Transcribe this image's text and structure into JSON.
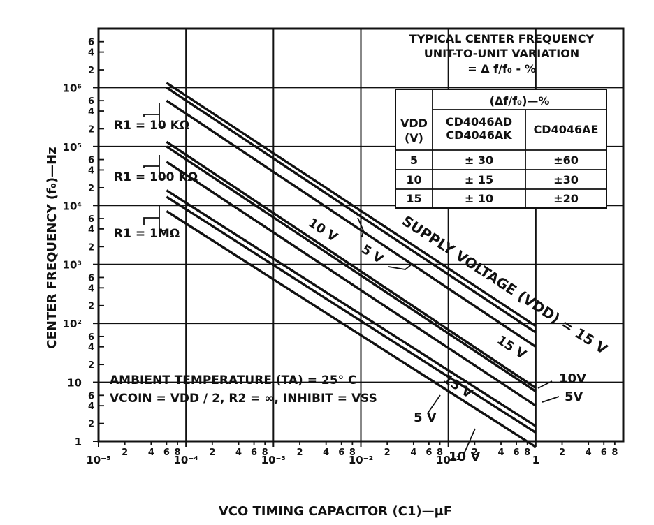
{
  "chart_data": {
    "type": "line",
    "title": "",
    "xlabel": "VCO TIMING CAPACITOR (C1)—μF",
    "ylabel": "CENTER FREQUENCY (f₀)—Hz",
    "x_scale": "log",
    "y_scale": "log",
    "xlim": [
      1e-05,
      10
    ],
    "ylim": [
      1,
      10000000
    ],
    "grid": true,
    "x_ticks": [
      "10⁻⁵",
      "10⁻⁴",
      "10⁻³",
      "10⁻²",
      "10⁻¹",
      "1"
    ],
    "y_ticks": [
      "1",
      "10",
      "10²",
      "10³",
      "10⁴",
      "10⁵",
      "10⁶"
    ],
    "series": [
      {
        "name": "R1 = 10 KΩ, VDD = 15 V",
        "x": [
          6e-05,
          1
        ],
        "y": [
          1200000,
          90
        ]
      },
      {
        "name": "R1 = 10 KΩ, VDD = 10 V",
        "x": [
          6e-05,
          1
        ],
        "y": [
          1000000,
          70
        ]
      },
      {
        "name": "R1 = 10 KΩ, VDD = 5 V",
        "x": [
          6e-05,
          1
        ],
        "y": [
          600000,
          40
        ]
      },
      {
        "name": "R1 = 100 KΩ, VDD = 15 V",
        "x": [
          6e-05,
          1
        ],
        "y": [
          120000,
          8
        ]
      },
      {
        "name": "R1 = 100 KΩ, VDD = 10 V",
        "x": [
          6e-05,
          1
        ],
        "y": [
          100000,
          7
        ]
      },
      {
        "name": "R1 = 100 KΩ, VDD = 5 V",
        "x": [
          6e-05,
          1
        ],
        "y": [
          55000,
          4
        ]
      },
      {
        "name": "R1 = 1 MΩ, VDD = 15 V",
        "x": [
          6e-05,
          1
        ],
        "y": [
          18000,
          1.8
        ]
      },
      {
        "name": "R1 = 1 MΩ, VDD = 10 V",
        "x": [
          6e-05,
          1
        ],
        "y": [
          14000,
          1.4
        ]
      },
      {
        "name": "R1 = 1 MΩ, VDD = 5 V",
        "x": [
          6e-05,
          1
        ],
        "y": [
          8000,
          0.8
        ]
      }
    ],
    "annotations": {
      "r1_labels": [
        "R1 = 10 KΩ",
        "R1 = 100 KΩ",
        "R1 = 1MΩ"
      ],
      "supply_voltage": "SUPPLY VOLTAGE (VDD) = 15 V",
      "v10_a": "10 V",
      "v5_a": "5 V",
      "v15_b": "15 V",
      "v15_c": "15 V",
      "v10_right": "10V",
      "v5_right": "5V",
      "v5_bottom": "5 V",
      "v10_bottom": "10 V",
      "ambient": "AMBIENT TEMPERATURE (TA) = 25° C",
      "vco_cond": "VCOIN = VDD / 2, R2 = ∞, INHIBIT = VSS"
    },
    "table": {
      "title_line1": "TYPICAL CENTER FREQUENCY",
      "title_line2": "UNIT-TO-UNIT VARIATION",
      "title_line3": "= Δ f/f₀ - %",
      "group_header": "(Δf/f₀)—%",
      "col0_line1": "VDD",
      "col0_line2": "(V)",
      "col1_line1": "CD4046AD",
      "col1_line2": "CD4046AK",
      "col2": "CD4046AE",
      "rows": [
        [
          "5",
          "± 30",
          "±60"
        ],
        [
          "10",
          "± 15",
          "±30"
        ],
        [
          "15",
          "± 10",
          "±20"
        ]
      ]
    }
  }
}
